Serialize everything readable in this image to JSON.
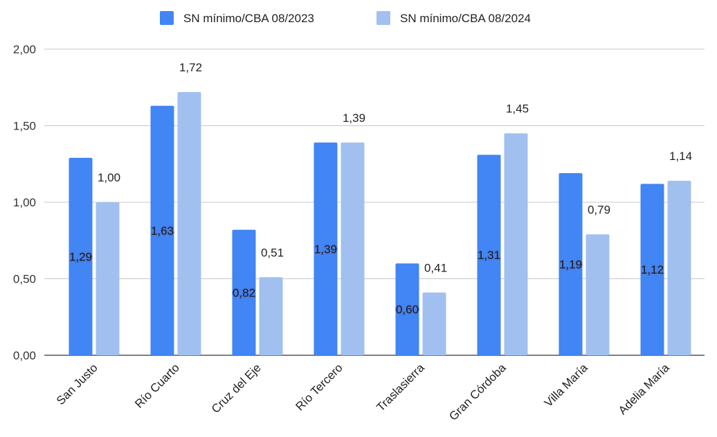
{
  "chart_data": {
    "type": "bar",
    "categories": [
      "San Justo",
      "Río Cuarto",
      "Cruz del Eje",
      "Río Tercero",
      "Traslasierra",
      "Gran Córdoba",
      "Villa María",
      "Adelia María"
    ],
    "series": [
      {
        "name": "SN mínimo/CBA 08/2023",
        "values": [
          1.29,
          1.63,
          0.82,
          1.39,
          0.6,
          1.31,
          1.19,
          1.12
        ],
        "labels": [
          "1,29",
          "1,63",
          "0,82",
          "1,39",
          "0,60",
          "1,31",
          "1,19",
          "1,12"
        ],
        "color": "#4285f4"
      },
      {
        "name": "SN mínimo/CBA 08/2024",
        "values": [
          1.0,
          1.72,
          0.51,
          1.39,
          0.41,
          1.45,
          0.79,
          1.14
        ],
        "labels": [
          "1,00",
          "1,72",
          "0,51",
          "1,39",
          "0,41",
          "1,45",
          "0,79",
          "1,14"
        ],
        "color": "#a1c0f0"
      }
    ],
    "ylim": [
      0,
      2
    ],
    "yticks": [
      0,
      0.5,
      1,
      1.5,
      2
    ],
    "ytick_labels": [
      "0,00",
      "0,50",
      "1,00",
      "1,50",
      "2,00"
    ],
    "grid": true,
    "legend_position": "top-center",
    "title": "",
    "xlabel": "",
    "ylabel": ""
  }
}
